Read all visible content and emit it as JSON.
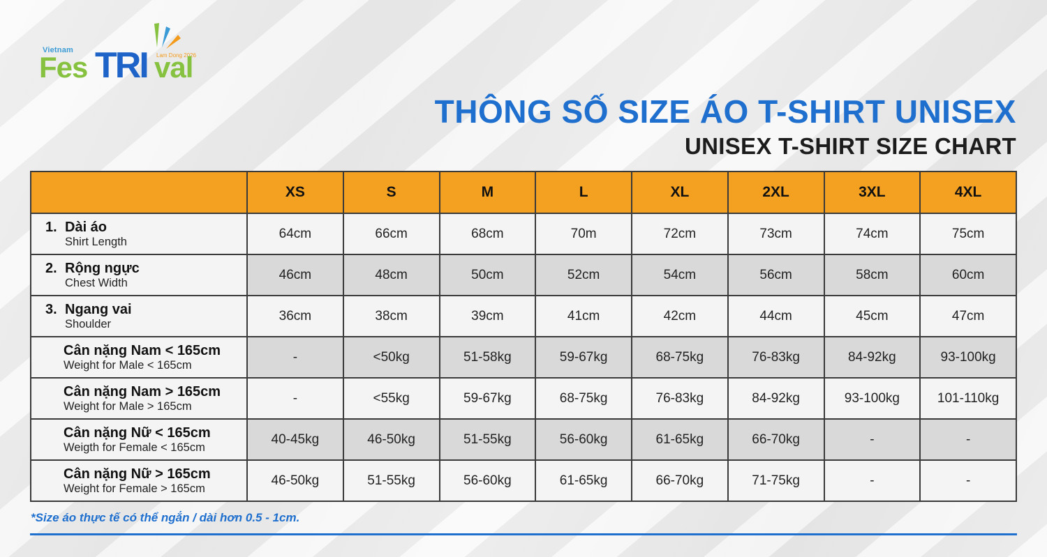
{
  "logo": {
    "small": "Vietnam",
    "fes": "Fes",
    "tri": "TRI",
    "val": "val",
    "sub": "Lam Dong 2026"
  },
  "title": {
    "vn": "THÔNG SỐ SIZE ÁO T-SHIRT UNISEX",
    "en": "UNISEX T-SHIRT SIZE CHART"
  },
  "colors": {
    "accent_blue": "#1f6fce",
    "header_orange": "#f4a020",
    "logo_green": "#86c23f"
  },
  "table": {
    "sizes": [
      "XS",
      "S",
      "M",
      "L",
      "XL",
      "2XL",
      "3XL",
      "4XL"
    ],
    "rows": [
      {
        "num": "1.",
        "label": "Dài áo",
        "sub": "Shirt Length",
        "values": [
          "64cm",
          "66cm",
          "68cm",
          "70m",
          "72cm",
          "73cm",
          "74cm",
          "75cm"
        ]
      },
      {
        "num": "2.",
        "label": "Rộng ngực",
        "sub": "Chest Width",
        "values": [
          "46cm",
          "48cm",
          "50cm",
          "52cm",
          "54cm",
          "56cm",
          "58cm",
          "60cm"
        ]
      },
      {
        "num": "3.",
        "label": "Ngang vai",
        "sub": "Shoulder",
        "values": [
          "36cm",
          "38cm",
          "39cm",
          "41cm",
          "42cm",
          "44cm",
          "45cm",
          "47cm"
        ]
      },
      {
        "num": "",
        "label": "Cân nặng Nam < 165cm",
        "sub": "Weight for Male < 165cm",
        "values": [
          "-",
          "<50kg",
          "51-58kg",
          "59-67kg",
          "68-75kg",
          "76-83kg",
          "84-92kg",
          "93-100kg"
        ]
      },
      {
        "num": "",
        "label": "Cân nặng Nam > 165cm",
        "sub": "Weight for Male > 165cm",
        "values": [
          "-",
          "<55kg",
          "59-67kg",
          "68-75kg",
          "76-83kg",
          "84-92kg",
          "93-100kg",
          "101-110kg"
        ]
      },
      {
        "num": "",
        "label": "Cân nặng Nữ < 165cm",
        "sub": "Weigth for Female < 165cm",
        "values": [
          "40-45kg",
          "46-50kg",
          "51-55kg",
          "56-60kg",
          "61-65kg",
          "66-70kg",
          "-",
          "-"
        ]
      },
      {
        "num": "",
        "label": "Cân nặng Nữ > 165cm",
        "sub": "Weight for Female > 165cm",
        "values": [
          "46-50kg",
          "51-55kg",
          "56-60kg",
          "61-65kg",
          "66-70kg",
          "71-75kg",
          "-",
          "-"
        ]
      }
    ]
  },
  "note": "*Size áo thực tế có thể ngắn / dài  hơn 0.5 - 1cm."
}
